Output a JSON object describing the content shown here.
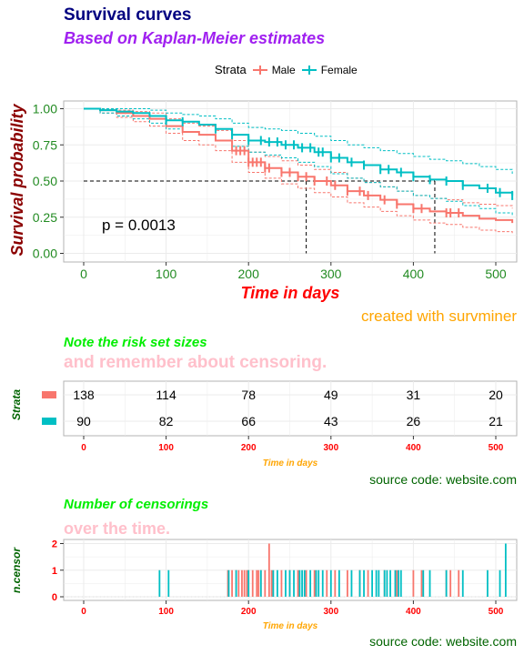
{
  "header": {
    "title": "Survival curves",
    "subtitle": "Based on Kaplan-Meier estimates"
  },
  "legend": {
    "title": "Strata",
    "items": [
      {
        "label": "Male",
        "color": "#F8766D"
      },
      {
        "label": "Female",
        "color": "#00BFC4"
      }
    ]
  },
  "caption": "created with survminer",
  "chart_data": [
    {
      "type": "line",
      "chart": "survival-curve",
      "xlabel": "Time in days",
      "ylabel": "Survival probability",
      "xlim": [
        0,
        520
      ],
      "ylim": [
        0,
        1
      ],
      "x_ticks": [
        0,
        100,
        200,
        300,
        400,
        500
      ],
      "y_ticks": [
        "0.00",
        "0.25",
        "0.50",
        "0.75",
        "1.00"
      ],
      "grid": true,
      "pvalue_label": "p = 0.0013",
      "median_survival": [
        {
          "series": "Male",
          "x": 270,
          "y": 0.5
        },
        {
          "series": "Female",
          "x": 426,
          "y": 0.5
        }
      ],
      "series": [
        {
          "name": "Male",
          "color": "#F8766D",
          "steps": [
            [
              0,
              1
            ],
            [
              20,
              0.99
            ],
            [
              40,
              0.97
            ],
            [
              60,
              0.95
            ],
            [
              80,
              0.93
            ],
            [
              100,
              0.88
            ],
            [
              120,
              0.84
            ],
            [
              140,
              0.82
            ],
            [
              160,
              0.78
            ],
            [
              180,
              0.71
            ],
            [
              200,
              0.63
            ],
            [
              220,
              0.59
            ],
            [
              240,
              0.56
            ],
            [
              260,
              0.53
            ],
            [
              280,
              0.5
            ],
            [
              300,
              0.47
            ],
            [
              320,
              0.43
            ],
            [
              340,
              0.4
            ],
            [
              360,
              0.37
            ],
            [
              380,
              0.34
            ],
            [
              400,
              0.31
            ],
            [
              420,
              0.29
            ],
            [
              440,
              0.28
            ],
            [
              460,
              0.26
            ],
            [
              480,
              0.24
            ],
            [
              500,
              0.23
            ],
            [
              520,
              0.21
            ]
          ],
          "upper": [
            [
              0,
              1
            ],
            [
              20,
              1
            ],
            [
              40,
              0.99
            ],
            [
              60,
              0.98
            ],
            [
              80,
              0.97
            ],
            [
              100,
              0.93
            ],
            [
              120,
              0.9
            ],
            [
              140,
              0.88
            ],
            [
              160,
              0.85
            ],
            [
              180,
              0.78
            ],
            [
              200,
              0.7
            ],
            [
              220,
              0.67
            ],
            [
              240,
              0.64
            ],
            [
              260,
              0.61
            ],
            [
              280,
              0.58
            ],
            [
              300,
              0.56
            ],
            [
              320,
              0.52
            ],
            [
              340,
              0.49
            ],
            [
              360,
              0.46
            ],
            [
              380,
              0.43
            ],
            [
              400,
              0.4
            ],
            [
              420,
              0.38
            ],
            [
              440,
              0.37
            ],
            [
              460,
              0.35
            ],
            [
              480,
              0.34
            ],
            [
              500,
              0.33
            ],
            [
              520,
              0.31
            ]
          ],
          "lower": [
            [
              0,
              1
            ],
            [
              20,
              0.97
            ],
            [
              40,
              0.94
            ],
            [
              60,
              0.91
            ],
            [
              80,
              0.88
            ],
            [
              100,
              0.83
            ],
            [
              120,
              0.78
            ],
            [
              140,
              0.75
            ],
            [
              160,
              0.71
            ],
            [
              180,
              0.63
            ],
            [
              200,
              0.56
            ],
            [
              220,
              0.52
            ],
            [
              240,
              0.48
            ],
            [
              260,
              0.45
            ],
            [
              280,
              0.42
            ],
            [
              300,
              0.39
            ],
            [
              320,
              0.35
            ],
            [
              340,
              0.32
            ],
            [
              360,
              0.29
            ],
            [
              380,
              0.26
            ],
            [
              400,
              0.23
            ],
            [
              420,
              0.21
            ],
            [
              440,
              0.2
            ],
            [
              460,
              0.18
            ],
            [
              480,
              0.16
            ],
            [
              500,
              0.15
            ],
            [
              520,
              0.14
            ]
          ],
          "censor_times": [
            185,
            190,
            195,
            200,
            205,
            210,
            215,
            220,
            225,
            240,
            250,
            260,
            270,
            280,
            295,
            305,
            320,
            335,
            345,
            365,
            380,
            400,
            410,
            440,
            445,
            455
          ]
        },
        {
          "name": "Female",
          "color": "#00BFC4",
          "steps": [
            [
              0,
              1
            ],
            [
              20,
              0.99
            ],
            [
              40,
              0.98
            ],
            [
              60,
              0.97
            ],
            [
              80,
              0.95
            ],
            [
              100,
              0.92
            ],
            [
              120,
              0.91
            ],
            [
              140,
              0.89
            ],
            [
              160,
              0.86
            ],
            [
              180,
              0.82
            ],
            [
              200,
              0.78
            ],
            [
              220,
              0.77
            ],
            [
              240,
              0.75
            ],
            [
              260,
              0.73
            ],
            [
              280,
              0.7
            ],
            [
              300,
              0.66
            ],
            [
              320,
              0.63
            ],
            [
              340,
              0.61
            ],
            [
              360,
              0.58
            ],
            [
              380,
              0.56
            ],
            [
              400,
              0.53
            ],
            [
              420,
              0.51
            ],
            [
              440,
              0.5
            ],
            [
              460,
              0.47
            ],
            [
              480,
              0.45
            ],
            [
              500,
              0.42
            ],
            [
              520,
              0.4
            ]
          ],
          "upper": [
            [
              0,
              1
            ],
            [
              20,
              1
            ],
            [
              40,
              1
            ],
            [
              60,
              1
            ],
            [
              80,
              0.99
            ],
            [
              100,
              0.97
            ],
            [
              120,
              0.96
            ],
            [
              140,
              0.95
            ],
            [
              160,
              0.93
            ],
            [
              180,
              0.9
            ],
            [
              200,
              0.87
            ],
            [
              220,
              0.86
            ],
            [
              240,
              0.85
            ],
            [
              260,
              0.83
            ],
            [
              280,
              0.81
            ],
            [
              300,
              0.78
            ],
            [
              320,
              0.75
            ],
            [
              340,
              0.73
            ],
            [
              360,
              0.71
            ],
            [
              380,
              0.69
            ],
            [
              400,
              0.67
            ],
            [
              420,
              0.65
            ],
            [
              440,
              0.64
            ],
            [
              460,
              0.62
            ],
            [
              480,
              0.6
            ],
            [
              500,
              0.58
            ],
            [
              520,
              0.55
            ]
          ],
          "lower": [
            [
              0,
              1
            ],
            [
              20,
              0.97
            ],
            [
              40,
              0.95
            ],
            [
              60,
              0.93
            ],
            [
              80,
              0.9
            ],
            [
              100,
              0.86
            ],
            [
              120,
              0.84
            ],
            [
              140,
              0.82
            ],
            [
              160,
              0.78
            ],
            [
              180,
              0.74
            ],
            [
              200,
              0.7
            ],
            [
              220,
              0.68
            ],
            [
              240,
              0.66
            ],
            [
              260,
              0.63
            ],
            [
              280,
              0.6
            ],
            [
              300,
              0.55
            ],
            [
              320,
              0.52
            ],
            [
              340,
              0.49
            ],
            [
              360,
              0.46
            ],
            [
              380,
              0.43
            ],
            [
              400,
              0.4
            ],
            [
              420,
              0.38
            ],
            [
              440,
              0.36
            ],
            [
              460,
              0.33
            ],
            [
              480,
              0.31
            ],
            [
              500,
              0.28
            ],
            [
              520,
              0.26
            ]
          ],
          "censor_times": [
            100,
            120,
            160,
            180,
            200,
            215,
            225,
            235,
            245,
            255,
            265,
            275,
            285,
            290,
            300,
            310,
            325,
            340,
            360,
            370,
            385,
            400,
            420,
            440,
            460,
            490,
            505,
            520
          ]
        }
      ]
    },
    {
      "type": "table",
      "chart": "risk-table",
      "title": "Note the risk set sizes",
      "subtitle": "and remember about censoring.",
      "xlabel": "Time in days",
      "ylabel": "Strata",
      "x_ticks": [
        0,
        100,
        200,
        300,
        400,
        500
      ],
      "rows": [
        {
          "name": "Male",
          "color": "#F8766D",
          "values": [
            138,
            114,
            78,
            49,
            31,
            20
          ]
        },
        {
          "name": "Female",
          "color": "#00BFC4",
          "values": [
            90,
            82,
            66,
            43,
            26,
            21
          ]
        }
      ],
      "source": "source code: website.com"
    },
    {
      "type": "bar",
      "chart": "censor-plot",
      "title": "Number of censorings",
      "subtitle": "over the time.",
      "xlabel": "Time in days",
      "ylabel": "n.censor",
      "xlim": [
        0,
        520
      ],
      "ylim": [
        0,
        2
      ],
      "x_ticks": [
        0,
        100,
        200,
        300,
        400,
        500
      ],
      "y_ticks": [
        0,
        1,
        2
      ],
      "series": [
        {
          "name": "Male",
          "color": "#F8766D",
          "x": [
            175,
            180,
            185,
            188,
            192,
            195,
            198,
            200,
            205,
            210,
            212,
            215,
            220,
            225,
            228,
            240,
            250,
            260,
            270,
            280,
            295,
            305,
            320,
            335,
            345,
            365,
            380,
            400,
            410,
            440,
            445,
            455
          ],
          "y": [
            1,
            1,
            1,
            1,
            1,
            1,
            1,
            1,
            1,
            1,
            1,
            1,
            1,
            2,
            1,
            1,
            1,
            1,
            1,
            1,
            1,
            1,
            1,
            1,
            1,
            1,
            1,
            1,
            1,
            1,
            1,
            1
          ]
        },
        {
          "name": "Female",
          "color": "#00BFC4",
          "x": [
            92,
            103,
            176,
            185,
            200,
            215,
            230,
            235,
            245,
            250,
            255,
            262,
            265,
            268,
            275,
            282,
            285,
            290,
            300,
            310,
            325,
            335,
            340,
            350,
            355,
            358,
            365,
            368,
            372,
            378,
            382,
            385,
            412,
            420,
            440,
            460,
            490,
            505,
            512
          ],
          "y": [
            1,
            1,
            1,
            1,
            1,
            1,
            1,
            1,
            1,
            1,
            1,
            1,
            1,
            1,
            1,
            1,
            1,
            1,
            1,
            1,
            1,
            1,
            1,
            1,
            1,
            1,
            1,
            1,
            1,
            1,
            1,
            1,
            1,
            1,
            1,
            1,
            1,
            1,
            2
          ]
        }
      ],
      "source": "source code: website.com"
    }
  ]
}
